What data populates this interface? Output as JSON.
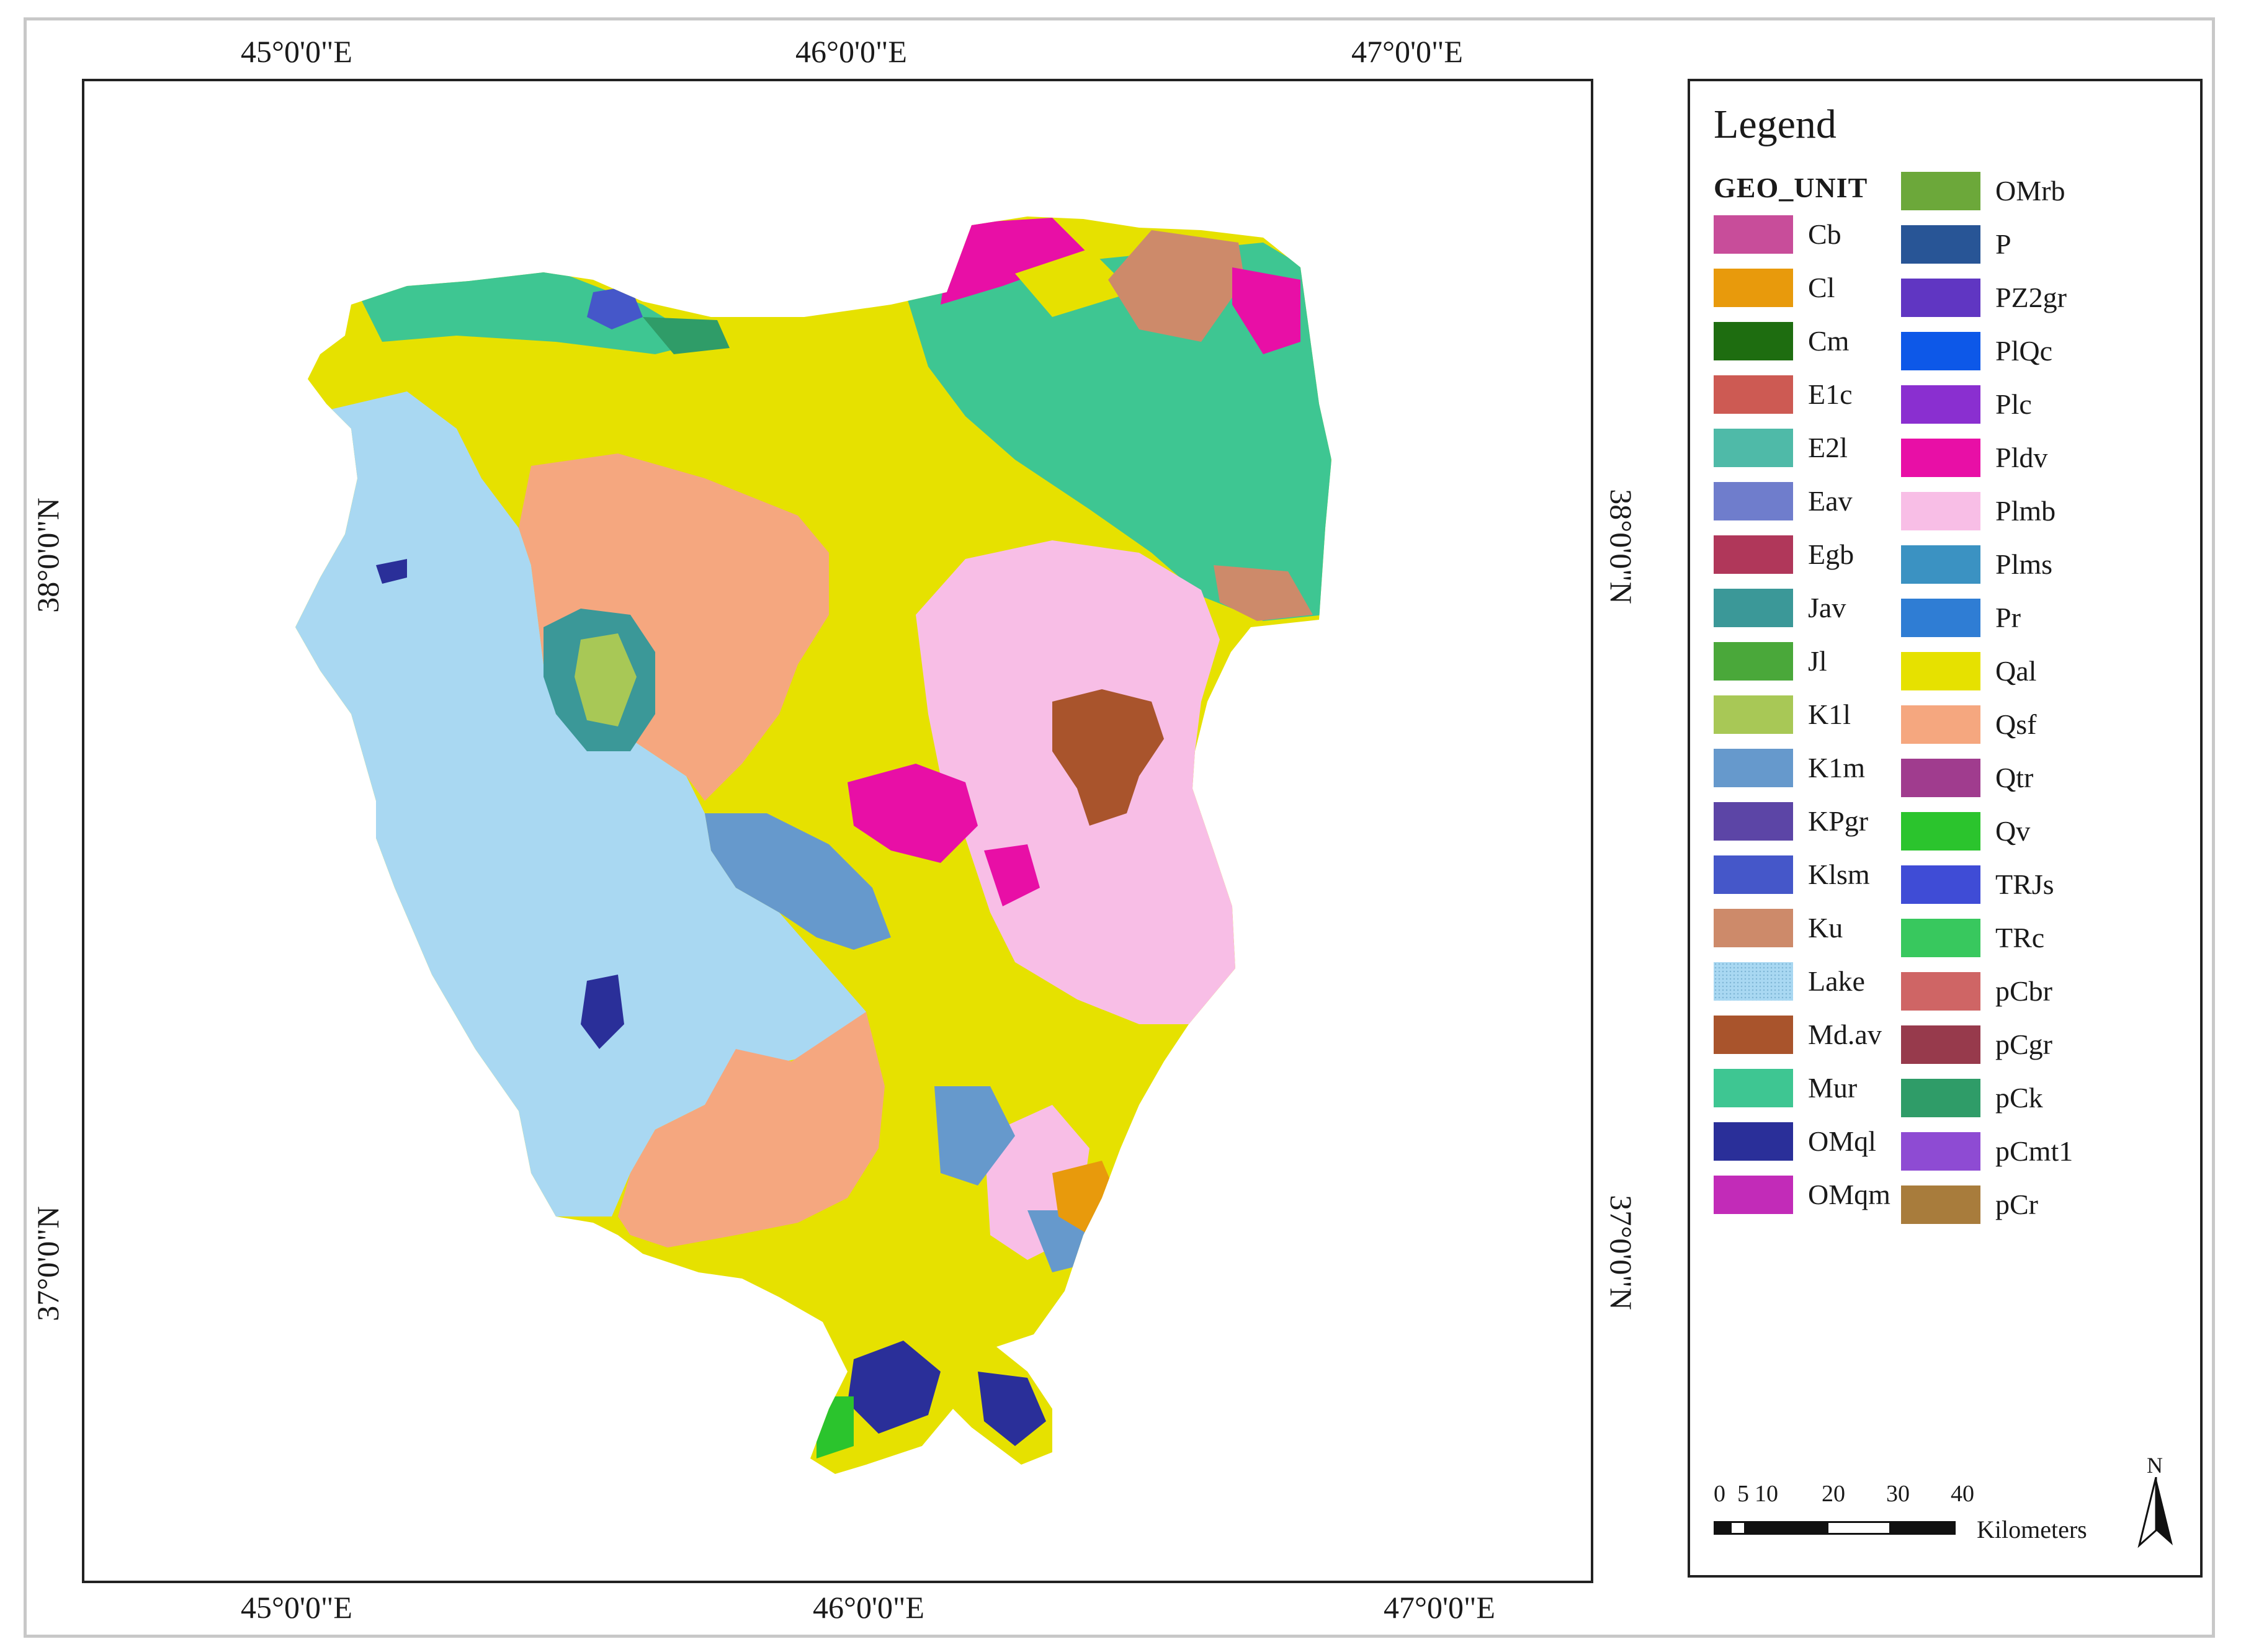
{
  "map": {
    "top_lon_labels": [
      "45°0'0\"E",
      "46°0'0\"E",
      "47°0'0\"E"
    ],
    "bottom_lon_labels": [
      "45°0'0\"E",
      "46°0'0\"E",
      "47°0'0\"E"
    ],
    "left_lat_labels": [
      "38°0'0\"N",
      "37°0'0\"N"
    ],
    "right_lat_labels": [
      "38°0'0\"N",
      "37°0'0\"N"
    ]
  },
  "legend": {
    "title": "Legend",
    "field": "GEO_UNIT",
    "col1": [
      {
        "label": "Cb",
        "color": "#c84d9a"
      },
      {
        "label": "Cl",
        "color": "#e89a0c"
      },
      {
        "label": "Cm",
        "color": "#1e6d10"
      },
      {
        "label": "E1c",
        "color": "#cd5a53"
      },
      {
        "label": "E2l",
        "color": "#4fbaa8"
      },
      {
        "label": "Eav",
        "color": "#6f7dcc"
      },
      {
        "label": "Egb",
        "color": "#b0375a"
      },
      {
        "label": "Jav",
        "color": "#3b9898"
      },
      {
        "label": "Jl",
        "color": "#4aa83a"
      },
      {
        "label": "K1l",
        "color": "#a8c856"
      },
      {
        "label": "K1m",
        "color": "#6699cc"
      },
      {
        "label": "KPgr",
        "color": "#5c45a6"
      },
      {
        "label": "Klsm",
        "color": "#4557c9"
      },
      {
        "label": "Ku",
        "color": "#cd8a6a"
      },
      {
        "label": "Lake",
        "color": "#a9d8f2"
      },
      {
        "label": "Md.av",
        "color": "#a9542c"
      },
      {
        "label": "Mur",
        "color": "#3ec692"
      },
      {
        "label": "OMql",
        "color": "#2a2f99"
      },
      {
        "label": "OMqm",
        "color": "#c22bb8"
      }
    ],
    "col2": [
      {
        "label": "OMrb",
        "color": "#6ca83a"
      },
      {
        "label": "P",
        "color": "#285596"
      },
      {
        "label": "PZ2gr",
        "color": "#6036c2"
      },
      {
        "label": "PlQc",
        "color": "#0d58e8"
      },
      {
        "label": "Plc",
        "color": "#8a2fd0"
      },
      {
        "label": "Pldv",
        "color": "#e80fa6"
      },
      {
        "label": "Plmb",
        "color": "#f8bee6"
      },
      {
        "label": "Plms",
        "color": "#3b92c2"
      },
      {
        "label": "Pr",
        "color": "#2f7dd4"
      },
      {
        "label": "Qal",
        "color": "#e6e100"
      },
      {
        "label": "Qsf",
        "color": "#f5a77f"
      },
      {
        "label": "Qtr",
        "color": "#a03c8e"
      },
      {
        "label": "Qv",
        "color": "#2bc42d"
      },
      {
        "label": "TRJs",
        "color": "#3f4cd6"
      },
      {
        "label": "TRc",
        "color": "#38c85e"
      },
      {
        "label": "pCbr",
        "color": "#cf6565"
      },
      {
        "label": "pCgr",
        "color": "#973a4c"
      },
      {
        "label": "pCk",
        "color": "#2f9c68"
      },
      {
        "label": "pCmt1",
        "color": "#8e4bd3"
      },
      {
        "label": "pCr",
        "color": "#a87c3c"
      }
    ]
  },
  "scale_bar": {
    "ticks": [
      "0",
      "5",
      "10",
      "20",
      "30",
      "40"
    ],
    "unit": "Kilometers"
  },
  "north_arrow": {
    "label": "N"
  }
}
